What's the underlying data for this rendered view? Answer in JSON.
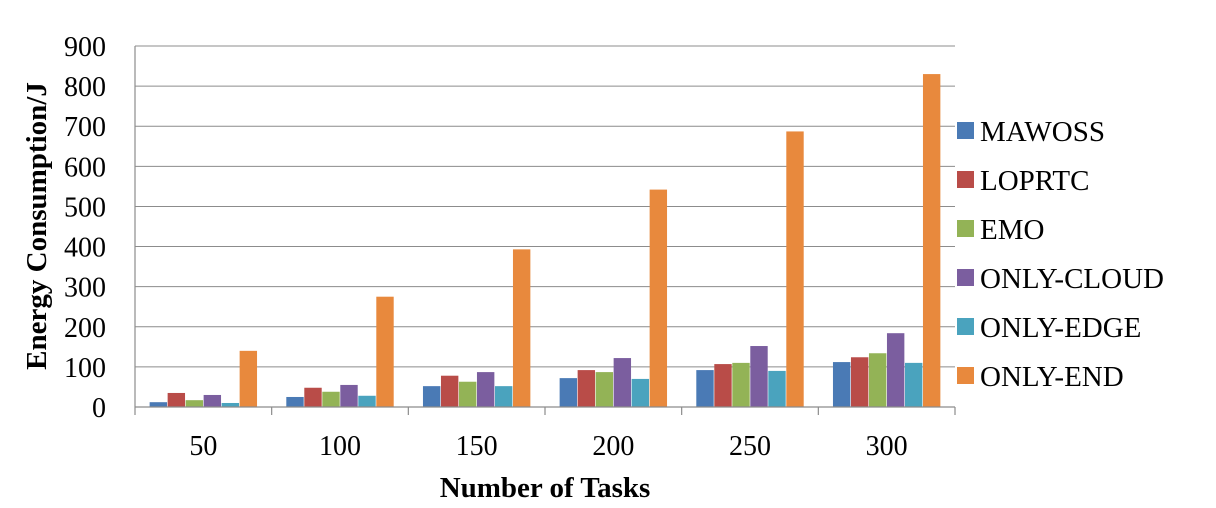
{
  "chart_data": {
    "type": "bar",
    "title": "",
    "xlabel": "Number of Tasks",
    "ylabel": "Energy Consumption/J",
    "ylim": [
      0,
      900
    ],
    "yticks": [
      "0",
      "100",
      "200",
      "300",
      "400",
      "500",
      "600",
      "700",
      "800",
      "900"
    ],
    "categories": [
      "50",
      "100",
      "150",
      "200",
      "250",
      "300"
    ],
    "grid": "horizontal",
    "legend_position": "right",
    "series": [
      {
        "name": "MAWOSS",
        "color": "#4a7ab5",
        "values": [
          12,
          25,
          52,
          72,
          92,
          112
        ]
      },
      {
        "name": "LOPRTC",
        "color": "#b94c48",
        "values": [
          35,
          48,
          78,
          92,
          107,
          124
        ]
      },
      {
        "name": "EMO",
        "color": "#93b356",
        "values": [
          17,
          38,
          63,
          87,
          110,
          134
        ]
      },
      {
        "name": "ONLY-CLOUD",
        "color": "#7b5e9f",
        "values": [
          30,
          55,
          87,
          122,
          152,
          184
        ]
      },
      {
        "name": "ONLY-EDGE",
        "color": "#4aa3be",
        "values": [
          10,
          28,
          52,
          70,
          90,
          110
        ]
      },
      {
        "name": "ONLY-END",
        "color": "#e8893d",
        "values": [
          140,
          275,
          393,
          542,
          687,
          830
        ]
      }
    ]
  }
}
